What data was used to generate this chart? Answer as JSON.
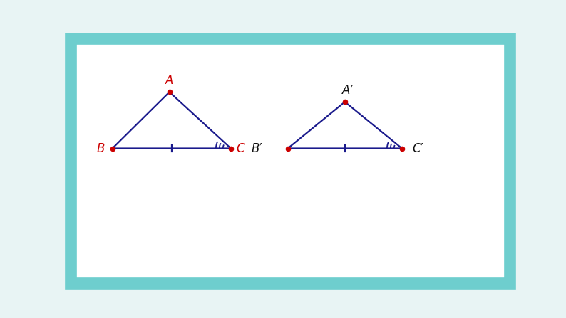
{
  "bg_color": "#e8f4f4",
  "border_color": "#6ecece",
  "border_lw": 8,
  "inner_bg": "#ffffff",
  "tri1": {
    "A": [
      0.225,
      0.78
    ],
    "B": [
      0.095,
      0.55
    ],
    "C": [
      0.365,
      0.55
    ],
    "color": "#1a1a8c",
    "lw": 1.6
  },
  "tri2": {
    "A": [
      0.625,
      0.74
    ],
    "B": [
      0.495,
      0.55
    ],
    "C": [
      0.755,
      0.55
    ],
    "color": "#1a1a8c",
    "lw": 1.6
  },
  "dot_color": "#cc0000",
  "dot_size": 4.5,
  "tick_color": "#1a1a8c",
  "arc_color": "#1a1a8c",
  "label_red": "#cc0000",
  "label_black": "#111111",
  "label_fontsize": 12
}
